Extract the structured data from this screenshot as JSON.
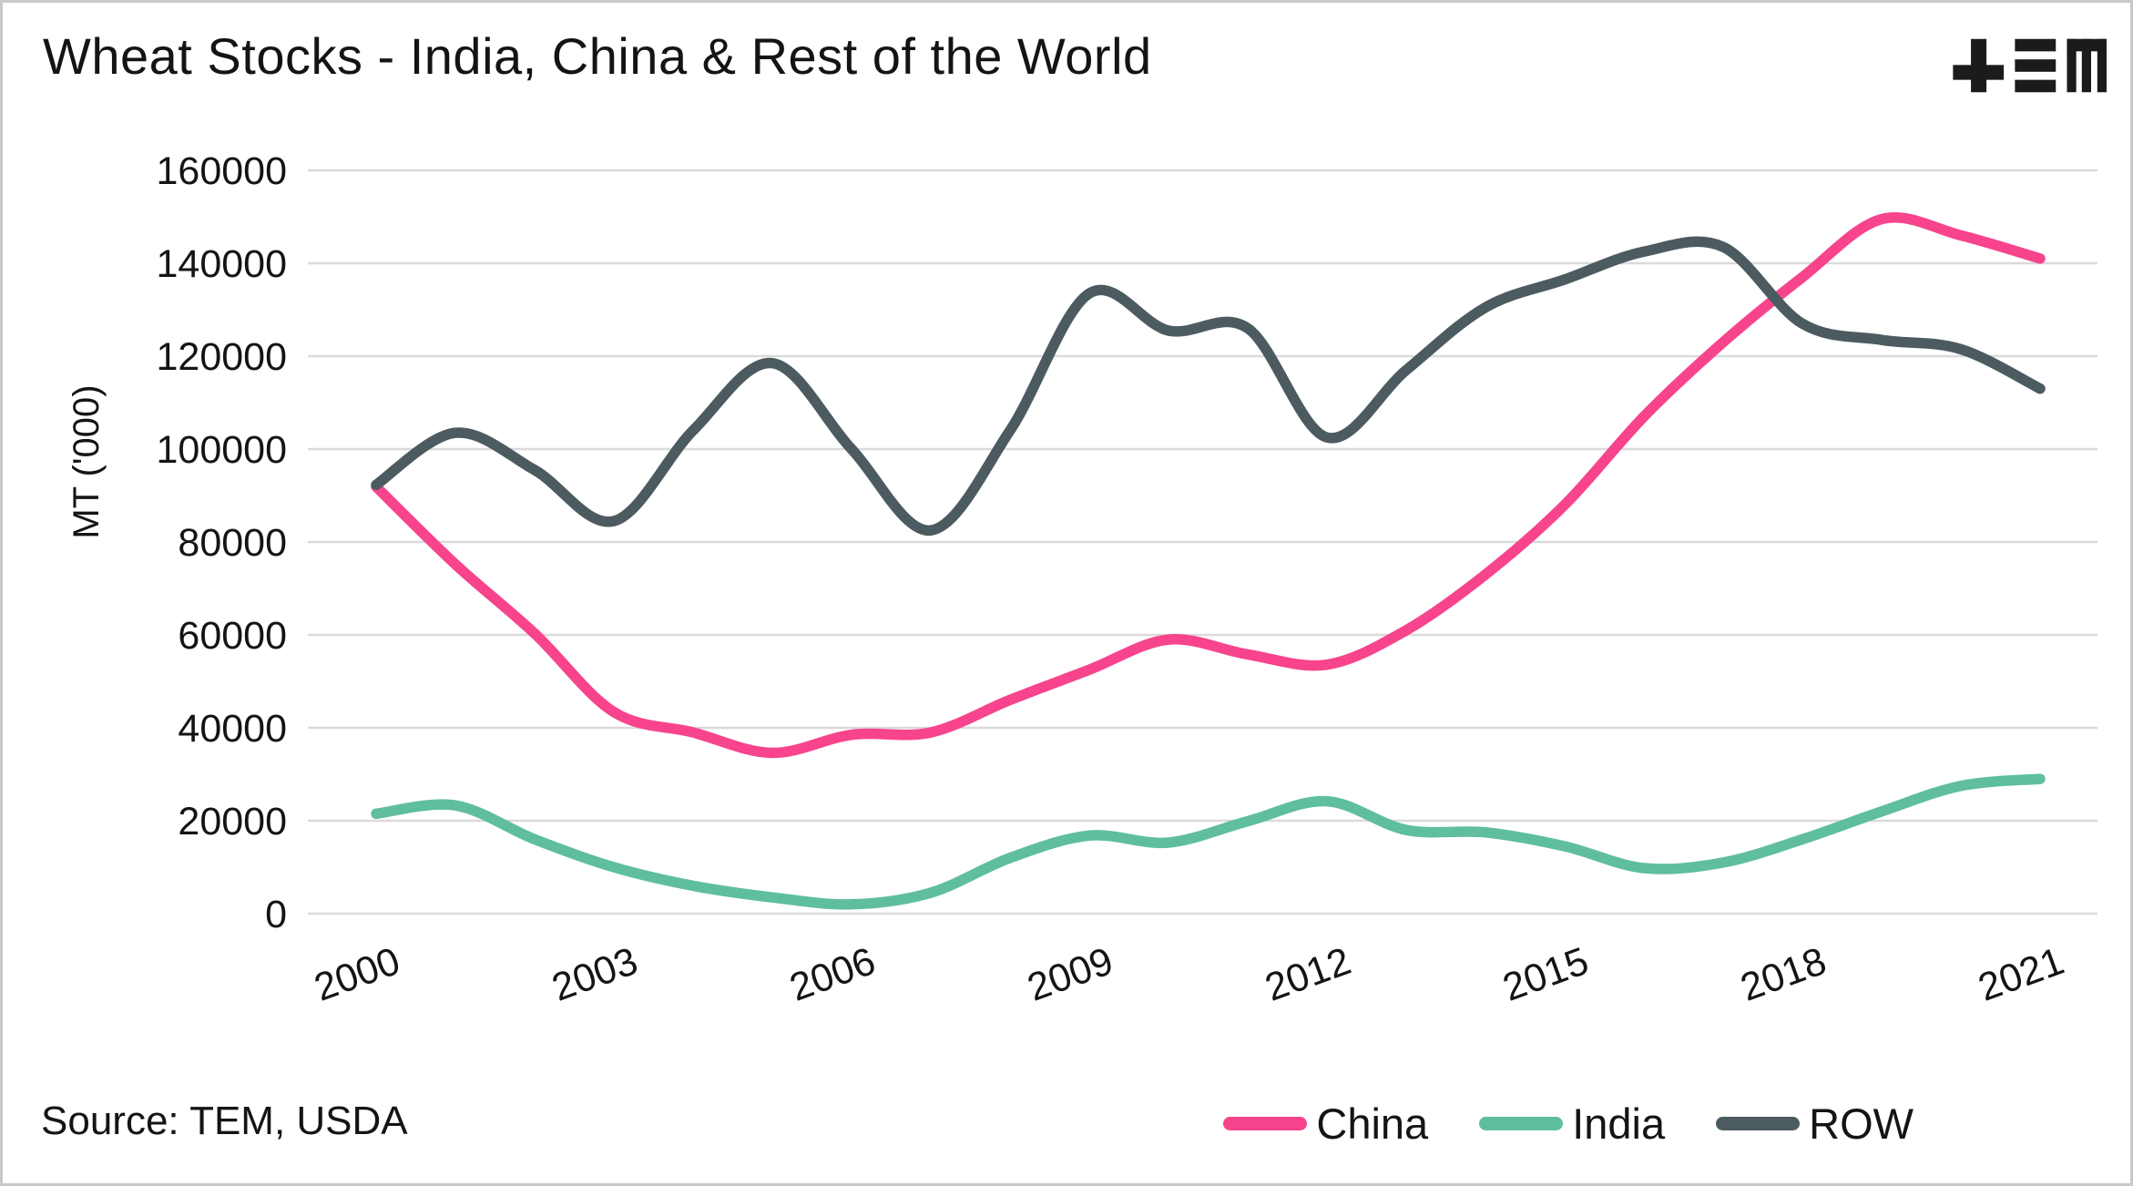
{
  "page": {
    "title": "Wheat Stocks - India, China & Rest of the World",
    "source": "Source: TEM, USDA",
    "logo_name": "TEM logo (plus, triple-bar, m glyphs)"
  },
  "colors": {
    "china": "#F7448D",
    "india": "#5FBE9E",
    "row": "#4C5B5F",
    "gridline": "#dadada",
    "text": "#141414",
    "background": "#ffffff",
    "frame_border": "#c9c9c9"
  },
  "chart_data": {
    "type": "line",
    "title": "Wheat Stocks - India, China & Rest of the World",
    "xlabel": "",
    "ylabel": "MT ('000)",
    "grid": true,
    "legend_position": "bottom-right",
    "ylim": [
      0,
      160000
    ],
    "y_ticks": [
      0,
      20000,
      40000,
      60000,
      80000,
      100000,
      120000,
      140000,
      160000
    ],
    "x_ticks": [
      2000,
      2003,
      2006,
      2009,
      2012,
      2015,
      2018,
      2021
    ],
    "x": [
      2000,
      2001,
      2002,
      2003,
      2004,
      2005,
      2006,
      2007,
      2008,
      2009,
      2010,
      2011,
      2012,
      2013,
      2014,
      2015,
      2016,
      2017,
      2018,
      2019,
      2020,
      2021
    ],
    "series": [
      {
        "name": "China",
        "color": "#F7448D",
        "values": [
          91900,
          75200,
          60300,
          43400,
          39000,
          34600,
          38500,
          39000,
          46000,
          52500,
          59000,
          55800,
          53600,
          61000,
          73000,
          88000,
          107000,
          123000,
          137000,
          149500,
          146000,
          141000
        ]
      },
      {
        "name": "India",
        "color": "#5FBE9E",
        "values": [
          21500,
          23300,
          16000,
          10000,
          6000,
          3500,
          2000,
          4500,
          12000,
          16800,
          15300,
          19900,
          24200,
          18000,
          17500,
          14500,
          9800,
          11000,
          16000,
          22000,
          27500,
          29000
        ]
      },
      {
        "name": "ROW",
        "color": "#4C5B5F",
        "values": [
          92300,
          103500,
          95500,
          84500,
          104000,
          118500,
          100000,
          82500,
          104000,
          133500,
          125500,
          126000,
          102500,
          117000,
          130500,
          136500,
          142500,
          143500,
          127000,
          123500,
          121500,
          113000
        ]
      }
    ]
  }
}
